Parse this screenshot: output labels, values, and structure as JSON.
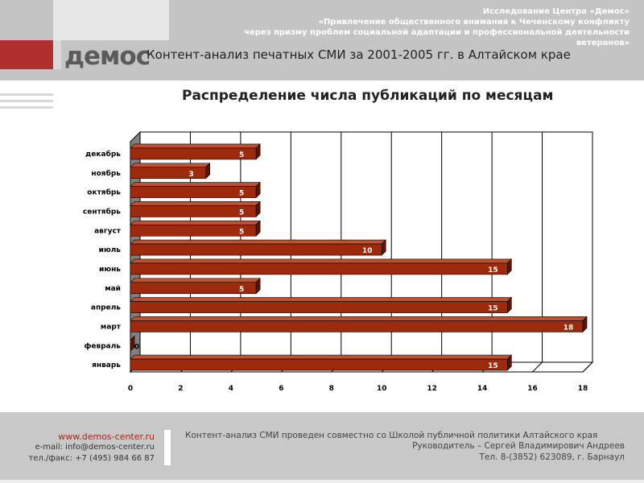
{
  "header": {
    "study_lines": [
      "Исследование Центра «Демос»",
      "«Привлечение общественного внимания к Чеченскому конфликту",
      "через призму проблем социальной адаптации и профессиональной деятельности",
      "ветеранов»"
    ],
    "logo_text": "демос",
    "title": "Контент-анализ печатных СМИ за 2001-2005 гг. в Алтайском крае"
  },
  "chart_data": {
    "type": "bar",
    "orientation": "horizontal",
    "title": "Распределение числа публикаций по месяцам",
    "categories": [
      "декабрь",
      "ноябрь",
      "октябрь",
      "сентябрь",
      "август",
      "июль",
      "июнь",
      "май",
      "апрель",
      "март",
      "февраль",
      "январь"
    ],
    "values": [
      5,
      3,
      5,
      5,
      5,
      10,
      15,
      5,
      15,
      18,
      0,
      15
    ],
    "xlim": [
      0,
      18
    ],
    "x_ticks": [
      0,
      2,
      4,
      6,
      8,
      10,
      12,
      14,
      16,
      18
    ],
    "grid": true,
    "bar_color": "#9e2a0e",
    "bar_top_color": "#c0502e",
    "bar_side_color": "#5a1505",
    "label_color": "#ffffff"
  },
  "footer": {
    "url": "www.demos-center.ru",
    "email": "e-mail: info@demos-center.ru",
    "phone": "тел./факс: +7 (495) 984 66 87",
    "right_line1": "Контент-анализ СМИ проведен совместно со Школой публичной политики Алтайского края",
    "right_line2": "Руководитель – Сергей Владимирович Андреев",
    "right_line3": "Тел. 8-(3852) 623089, г. Барнаул"
  }
}
